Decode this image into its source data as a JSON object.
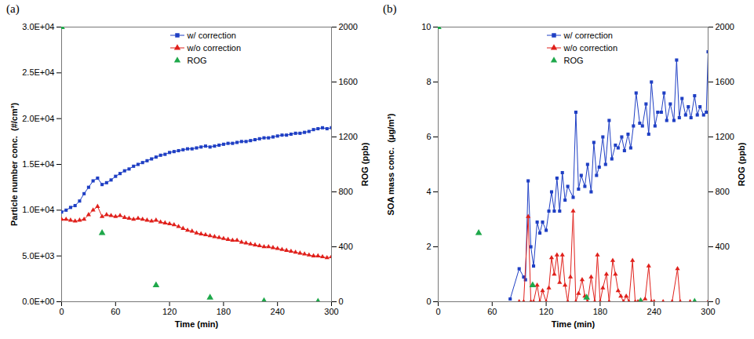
{
  "chart_data": [
    {
      "type": "line",
      "title": "(a)",
      "xlabel": "Time (min)",
      "ylabel": "Particle number conc.  (#/cm³)",
      "y2label": "ROG (ppb)",
      "xlim": [
        0,
        300
      ],
      "xticks": [
        0,
        60,
        120,
        180,
        240,
        300
      ],
      "ylim": [
        0,
        30000
      ],
      "yticks": [
        {
          "value": 0,
          "label": "0.0E+00"
        },
        {
          "value": 5000,
          "label": "5.0E+03"
        },
        {
          "value": 10000,
          "label": "1.0E+04"
        },
        {
          "value": 15000,
          "label": "1.5E+04"
        },
        {
          "value": 20000,
          "label": "2.0E+04"
        },
        {
          "value": 25000,
          "label": "2.5E+04"
        },
        {
          "value": 30000,
          "label": "3.0E+04"
        }
      ],
      "y2lim": [
        0,
        2000
      ],
      "y2ticks": [
        0,
        400,
        800,
        1200,
        1600,
        2000
      ],
      "grid": false,
      "legend": "upper right",
      "series": [
        {
          "name": "w/ correction",
          "color": "#1f3fc4",
          "marker": "square",
          "line_style": "solid",
          "x": [
            0,
            5,
            10,
            15,
            20,
            25,
            30,
            35,
            40,
            45,
            50,
            55,
            60,
            65,
            70,
            75,
            80,
            85,
            90,
            95,
            100,
            105,
            110,
            115,
            120,
            125,
            130,
            135,
            140,
            145,
            150,
            155,
            160,
            165,
            170,
            175,
            180,
            185,
            190,
            195,
            200,
            205,
            210,
            215,
            220,
            225,
            230,
            235,
            240,
            245,
            250,
            255,
            260,
            265,
            270,
            275,
            280,
            285,
            290,
            295,
            300
          ],
          "values": [
            9800,
            10000,
            10300,
            10500,
            11000,
            11800,
            12500,
            13200,
            13500,
            12800,
            13000,
            13300,
            13700,
            14000,
            14300,
            14500,
            14800,
            15000,
            15200,
            15400,
            15600,
            15800,
            16000,
            16100,
            16300,
            16400,
            16500,
            16600,
            16700,
            16700,
            16800,
            16900,
            17000,
            16900,
            17000,
            17100,
            17200,
            17300,
            17300,
            17400,
            17500,
            17500,
            17600,
            17700,
            17800,
            17900,
            17900,
            18000,
            18100,
            18200,
            18200,
            18300,
            18400,
            18400,
            18500,
            18600,
            18800,
            18900,
            19000,
            18900,
            19000
          ]
        },
        {
          "name": "w/o correction",
          "color": "#e0201b",
          "marker": "triangle",
          "line_style": "solid",
          "x": [
            0,
            5,
            10,
            15,
            20,
            25,
            30,
            35,
            40,
            45,
            50,
            55,
            60,
            65,
            70,
            75,
            80,
            85,
            90,
            95,
            100,
            105,
            110,
            115,
            120,
            125,
            130,
            135,
            140,
            145,
            150,
            155,
            160,
            165,
            170,
            175,
            180,
            185,
            190,
            195,
            200,
            205,
            210,
            215,
            220,
            225,
            230,
            235,
            240,
            245,
            250,
            255,
            260,
            265,
            270,
            275,
            280,
            285,
            290,
            295,
            300
          ],
          "values": [
            9000,
            9000,
            8900,
            8800,
            8900,
            9000,
            9500,
            10000,
            10400,
            9300,
            9500,
            9400,
            9300,
            9400,
            9200,
            9100,
            9000,
            9100,
            9000,
            8900,
            8800,
            8900,
            8700,
            8600,
            8500,
            8400,
            8200,
            8000,
            7800,
            7700,
            7500,
            7400,
            7300,
            7200,
            7100,
            7000,
            6900,
            6800,
            6700,
            6700,
            6500,
            6400,
            6300,
            6200,
            6100,
            6000,
            6000,
            5900,
            5800,
            5700,
            5600,
            5500,
            5400,
            5300,
            5200,
            5100,
            5000,
            5000,
            4900,
            4800,
            4900
          ]
        },
        {
          "name": "ROG",
          "color": "#1ea84a",
          "marker": "triangle",
          "type": "scatter",
          "axis": "y2",
          "x": [
            0,
            45,
            105,
            165,
            225,
            285
          ],
          "values": [
            2000,
            500,
            120,
            30,
            5,
            0
          ]
        }
      ]
    },
    {
      "type": "line",
      "title": "(b)",
      "xlabel": "Time (min)",
      "ylabel": "SOA mass conc.  (μg/m³)",
      "y2label": "ROG (ppb)",
      "xlim": [
        0,
        300
      ],
      "xticks": [
        0,
        60,
        120,
        180,
        240,
        300
      ],
      "ylim": [
        0,
        10
      ],
      "yticks": [
        0,
        2,
        4,
        6,
        8,
        10
      ],
      "y2lim": [
        0,
        2000
      ],
      "y2ticks": [
        0,
        400,
        800,
        1200,
        1600,
        2000
      ],
      "grid": false,
      "legend": "upper right",
      "series": [
        {
          "name": "w/ correction",
          "color": "#1f3fc4",
          "marker": "square",
          "line_style": "solid",
          "x": [
            80,
            90,
            95,
            97,
            100,
            103,
            106,
            110,
            113,
            116,
            120,
            123,
            126,
            129,
            132,
            135,
            138,
            141,
            144,
            150,
            153,
            156,
            159,
            163,
            166,
            170,
            173,
            176,
            179,
            183,
            186,
            190,
            193,
            197,
            200,
            204,
            207,
            211,
            214,
            217,
            220,
            224,
            227,
            231,
            234,
            237,
            241,
            244,
            248,
            251,
            254,
            258,
            262,
            265,
            268,
            271,
            275,
            278,
            281,
            285,
            288,
            291,
            295,
            298,
            300
          ],
          "values": [
            0.1,
            1.2,
            0.9,
            0.8,
            4.4,
            2.0,
            1.3,
            2.9,
            2.5,
            2.9,
            2.6,
            3.3,
            4.0,
            3.3,
            4.5,
            3.3,
            4.7,
            3.7,
            4.2,
            3.8,
            6.9,
            4.1,
            4.6,
            4.2,
            5.0,
            4.0,
            5.8,
            4.6,
            4.9,
            6.0,
            5.0,
            6.6,
            5.2,
            5.7,
            5.6,
            6.0,
            5.5,
            6.1,
            5.6,
            6.4,
            7.6,
            6.5,
            6.4,
            7.2,
            6.1,
            8.0,
            6.4,
            6.9,
            6.9,
            7.6,
            6.6,
            7.2,
            6.6,
            8.8,
            6.7,
            7.4,
            6.8,
            7.1,
            6.7,
            7.5,
            6.8,
            7.1,
            6.8,
            6.9,
            9.1
          ]
        },
        {
          "name": "w/o correction",
          "color": "#e0201b",
          "marker": "triangle",
          "line_style": "solid",
          "x": [
            90,
            95,
            100,
            103,
            106,
            110,
            113,
            116,
            120,
            123,
            126,
            129,
            132,
            135,
            138,
            141,
            144,
            147,
            150,
            153,
            156,
            160,
            163,
            166,
            170,
            174,
            177,
            180,
            183,
            187,
            190,
            194,
            197,
            200,
            203,
            206,
            209,
            212,
            216,
            219,
            222,
            225,
            230,
            234,
            237,
            240,
            250,
            260,
            266,
            269,
            280,
            300
          ],
          "values": [
            0,
            0,
            3.1,
            0,
            0,
            0.6,
            0,
            0.4,
            0,
            0.5,
            1.6,
            1.0,
            1.7,
            0.7,
            1.7,
            0.6,
            0,
            0.9,
            3.3,
            0,
            0.3,
            0.8,
            0.2,
            0,
            0.9,
            0,
            1.7,
            0,
            0.5,
            1.0,
            0,
            1.5,
            1.0,
            0.4,
            0.2,
            0,
            0.2,
            0,
            1.5,
            0,
            0,
            0,
            0.1,
            1.3,
            0,
            0,
            0,
            0,
            1.2,
            0,
            0,
            0
          ]
        },
        {
          "name": "ROG",
          "color": "#1ea84a",
          "marker": "triangle",
          "type": "scatter",
          "axis": "y2",
          "x": [
            0,
            45,
            105,
            165,
            225,
            285
          ],
          "values": [
            2000,
            500,
            120,
            30,
            5,
            0
          ]
        }
      ]
    }
  ]
}
